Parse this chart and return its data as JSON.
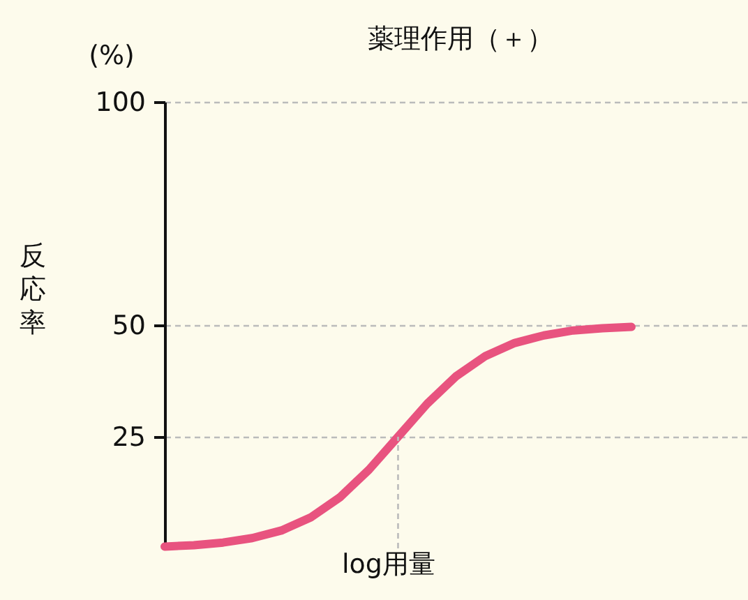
{
  "chart_data": {
    "type": "line",
    "title": "薬理作用（＋）",
    "xlabel": "log用量",
    "ylabel": "反応率",
    "annotations": [
      "(%)"
    ],
    "categories": [
      null,
      null,
      null,
      null,
      null,
      null,
      null,
      null,
      null,
      null,
      null,
      null,
      null,
      null,
      null,
      null,
      null,
      null,
      null,
      null,
      null
    ],
    "ylim": [
      0,
      100
    ],
    "yticks": [
      25,
      50,
      100
    ],
    "tick_labels": "y",
    "grid": "y",
    "series": [
      {
        "color": "#e8537f",
        "values": [
          0.4,
          0.7,
          1.3,
          2.3,
          4,
          6.9,
          11.4,
          17.6,
          25,
          32.4,
          38.6,
          43.1,
          46,
          47.7,
          48.8,
          49.3,
          49.6,
          null,
          null,
          null,
          null
        ]
      }
    ]
  }
}
